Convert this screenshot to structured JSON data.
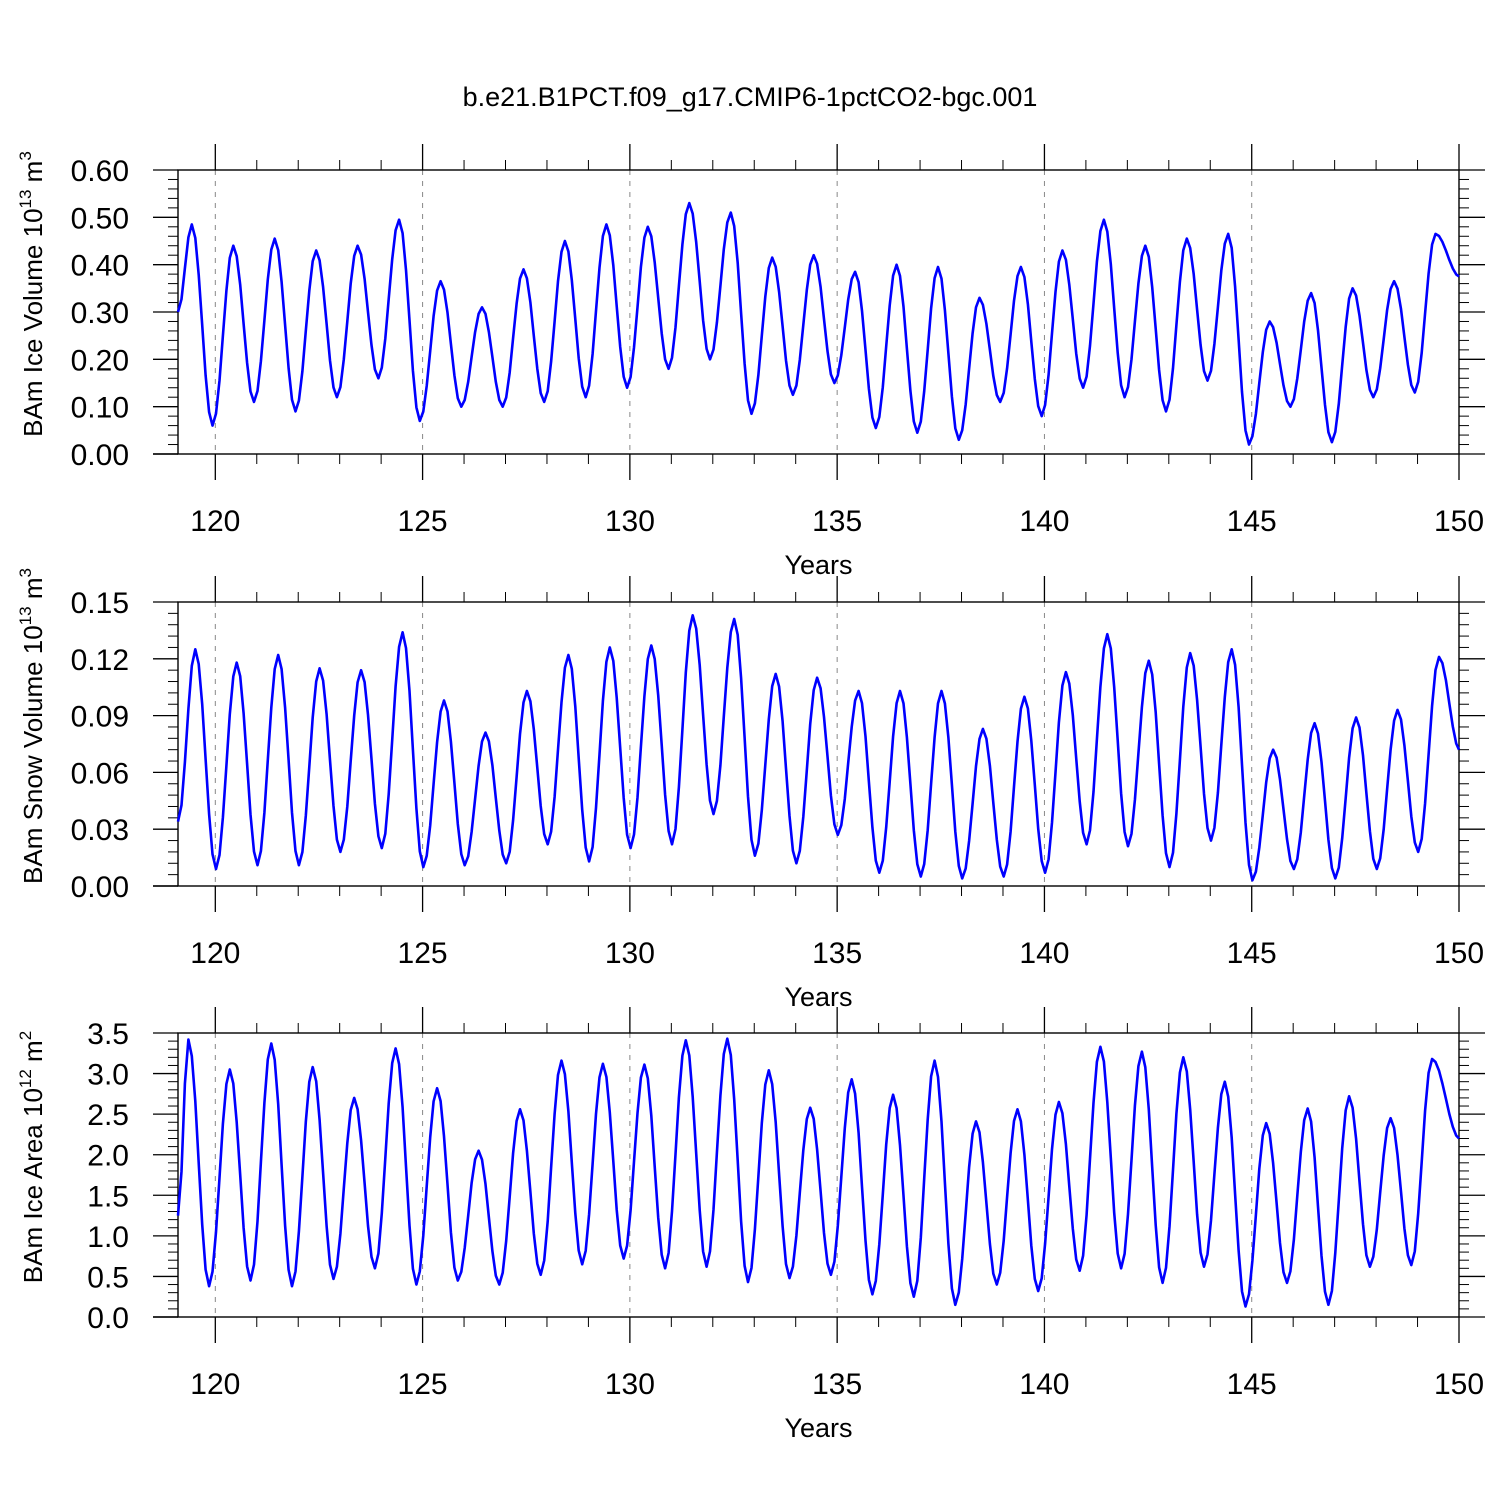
{
  "figure": {
    "title": "b.e21.B1PCT.f09_g17.CMIP6-1pctCO2-bgc.001",
    "line_color": "#0000ff",
    "grid_color": "#888888"
  },
  "chart_data": [
    {
      "type": "line",
      "ylabel": "BAm Ice Volume 10",
      "ylabel_exp": "13",
      "ylabel_unit": " m",
      "ylabel_unit_exp": "3",
      "xlabel": "Years",
      "xlim": [
        119.1,
        150.0
      ],
      "ylim": [
        0.0,
        0.6
      ],
      "xticks": [
        120,
        125,
        130,
        135,
        140,
        145,
        150
      ],
      "yticks": [
        0.0,
        0.1,
        0.2,
        0.3,
        0.4,
        0.5,
        0.6
      ],
      "ytick_labels": [
        "0.00",
        "0.10",
        "0.20",
        "0.30",
        "0.40",
        "0.50",
        "0.60"
      ],
      "grid": "dashed vertical lines at major x ticks",
      "start_year": 119.1,
      "peak_month": 4,
      "series_values": {
        "start_value": 0.3,
        "minima": [
          0.06,
          0.11,
          0.09,
          0.12,
          0.16,
          0.07,
          0.1,
          0.1,
          0.11,
          0.12,
          0.14,
          0.18,
          0.2,
          0.085,
          0.125,
          0.15,
          0.055,
          0.045,
          0.03,
          0.11,
          0.08,
          0.14,
          0.12,
          0.09,
          0.155,
          0.02,
          0.1,
          0.025,
          0.12,
          0.13
        ],
        "maxima": [
          0.485,
          0.44,
          0.455,
          0.43,
          0.44,
          0.495,
          0.365,
          0.31,
          0.39,
          0.45,
          0.485,
          0.48,
          0.53,
          0.51,
          0.415,
          0.42,
          0.385,
          0.4,
          0.395,
          0.33,
          0.395,
          0.43,
          0.495,
          0.44,
          0.455,
          0.465,
          0.28,
          0.34,
          0.35,
          0.365,
          0.465
        ],
        "end_value": 0.375
      }
    },
    {
      "type": "line",
      "ylabel": "BAm Snow Volume 10",
      "ylabel_exp": "13",
      "ylabel_unit": " m",
      "ylabel_unit_exp": "3",
      "xlabel": "Years",
      "xlim": [
        119.1,
        150.0
      ],
      "ylim": [
        0.0,
        0.15
      ],
      "xticks": [
        120,
        125,
        130,
        135,
        140,
        145,
        150
      ],
      "yticks": [
        0.0,
        0.03,
        0.06,
        0.09,
        0.12,
        0.15
      ],
      "ytick_labels": [
        "0.00",
        "0.03",
        "0.06",
        "0.09",
        "0.12",
        "0.15"
      ],
      "grid": "dashed vertical lines at major x ticks",
      "start_year": 119.1,
      "peak_month": 5,
      "series_values": {
        "start_value": 0.034,
        "minima": [
          0.009,
          0.011,
          0.011,
          0.018,
          0.02,
          0.01,
          0.011,
          0.012,
          0.022,
          0.013,
          0.02,
          0.022,
          0.038,
          0.016,
          0.012,
          0.027,
          0.007,
          0.005,
          0.004,
          0.005,
          0.007,
          0.022,
          0.021,
          0.01,
          0.024,
          0.003,
          0.009,
          0.004,
          0.009,
          0.018
        ],
        "maxima": [
          0.125,
          0.118,
          0.122,
          0.115,
          0.114,
          0.134,
          0.098,
          0.081,
          0.103,
          0.122,
          0.126,
          0.127,
          0.143,
          0.141,
          0.112,
          0.11,
          0.103,
          0.103,
          0.103,
          0.083,
          0.1,
          0.113,
          0.133,
          0.119,
          0.123,
          0.125,
          0.072,
          0.086,
          0.089,
          0.093,
          0.121
        ],
        "end_value": 0.072
      }
    },
    {
      "type": "line",
      "ylabel": "BAm Ice Area 10",
      "ylabel_exp": "12",
      "ylabel_unit": " m",
      "ylabel_unit_exp": "2",
      "xlabel": "Years",
      "xlim": [
        119.1,
        150.0
      ],
      "ylim": [
        0.0,
        3.5
      ],
      "xticks": [
        120,
        125,
        130,
        135,
        140,
        145,
        150
      ],
      "yticks": [
        0.0,
        0.5,
        1.0,
        1.5,
        2.0,
        2.5,
        3.0,
        3.5
      ],
      "ytick_labels": [
        "0.0",
        "0.5",
        "1.0",
        "1.5",
        "2.0",
        "2.5",
        "3.0",
        "3.5"
      ],
      "grid": "dashed vertical lines at major x ticks",
      "start_year": 119.1,
      "peak_month": 3,
      "series_values": {
        "start_value": 1.25,
        "minima": [
          0.38,
          0.45,
          0.38,
          0.47,
          0.6,
          0.4,
          0.45,
          0.4,
          0.52,
          0.65,
          0.72,
          0.6,
          0.62,
          0.43,
          0.48,
          0.52,
          0.28,
          0.25,
          0.15,
          0.4,
          0.32,
          0.57,
          0.6,
          0.42,
          0.62,
          0.13,
          0.42,
          0.15,
          0.62,
          0.64
        ],
        "maxima": [
          3.42,
          3.05,
          3.37,
          3.08,
          2.7,
          3.31,
          2.82,
          2.05,
          2.56,
          3.16,
          3.12,
          3.11,
          3.41,
          3.43,
          3.04,
          2.58,
          2.93,
          2.74,
          3.16,
          2.41,
          2.56,
          2.65,
          3.33,
          3.27,
          3.2,
          2.9,
          2.39,
          2.57,
          2.72,
          2.45,
          3.18
        ],
        "end_value": 2.2
      }
    }
  ]
}
